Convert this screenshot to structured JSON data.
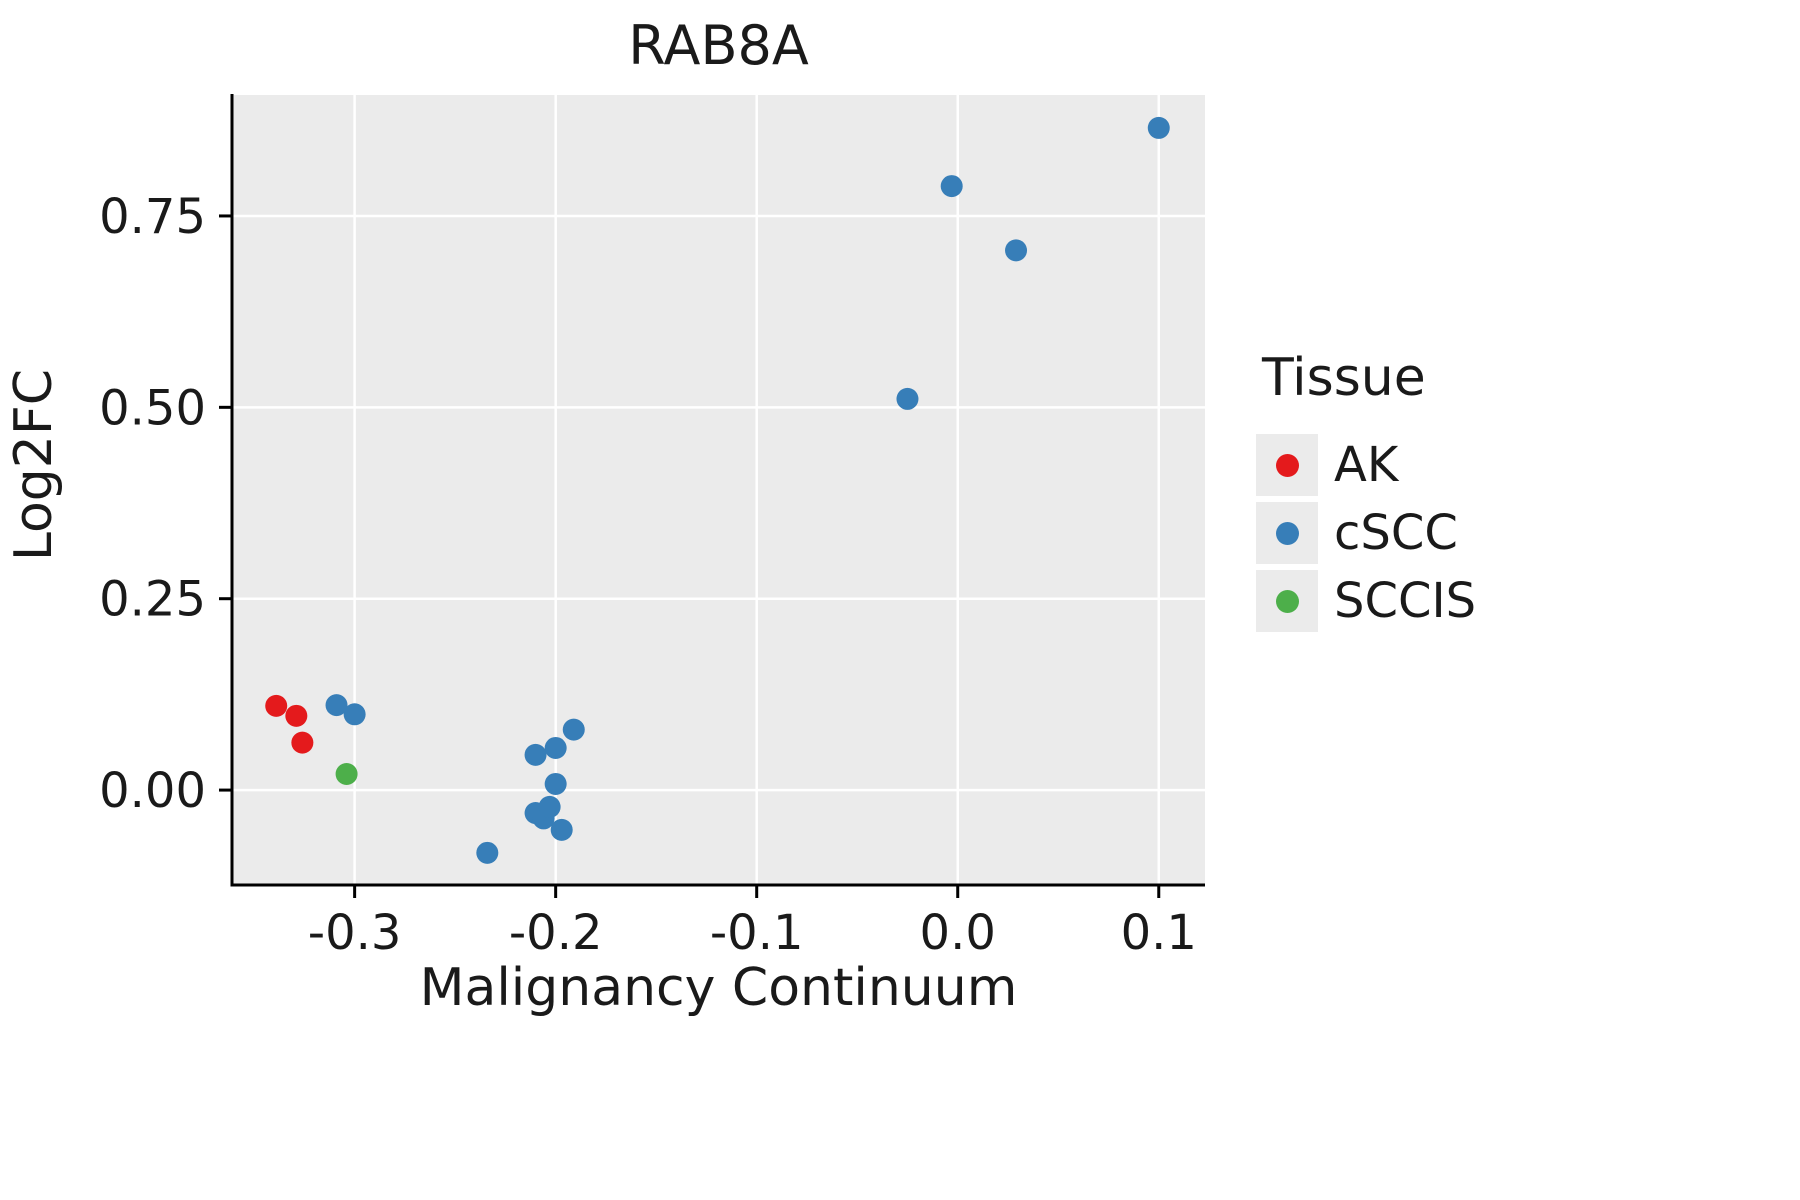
{
  "colors": {
    "panel_bg": "#EBEBEB",
    "grid": "#FFFFFF",
    "axis": "#000000",
    "text": "#1a1a1a",
    "ak": "#E41A1C",
    "cscc": "#377EB8",
    "sccis": "#4DAF4A"
  },
  "legend": {
    "title": "Tissue",
    "entries": [
      {
        "label": "AK",
        "color": "#E41A1C"
      },
      {
        "label": "cSCC",
        "color": "#377EB8"
      },
      {
        "label": "SCCIS",
        "color": "#4DAF4A"
      }
    ]
  },
  "chart_data": {
    "type": "scatter",
    "title": "RAB8A",
    "xlabel": "Malignancy Continuum",
    "ylabel": "Log2FC",
    "legend_title": "Tissue",
    "legend_position": "right",
    "grid": true,
    "xlim": [
      -0.361,
      0.123
    ],
    "ylim": [
      -0.124,
      0.908
    ],
    "x_ticks": [
      -0.3,
      -0.2,
      -0.1,
      0.0,
      0.1
    ],
    "x_tick_labels": [
      "-0.3",
      "-0.2",
      "-0.1",
      "0.0",
      "0.1"
    ],
    "y_ticks": [
      0.0,
      0.25,
      0.5,
      0.75
    ],
    "y_tick_labels": [
      "0.00",
      "0.25",
      "0.50",
      "0.75"
    ],
    "point_radius_px": 11,
    "series": [
      {
        "name": "AK",
        "color": "#E41A1C",
        "points": [
          [
            -0.339,
            0.11
          ],
          [
            -0.329,
            0.097
          ],
          [
            -0.326,
            0.062
          ]
        ]
      },
      {
        "name": "cSCC",
        "color": "#377EB8",
        "points": [
          [
            -0.309,
            0.111
          ],
          [
            -0.3,
            0.099
          ],
          [
            -0.234,
            -0.082
          ],
          [
            -0.21,
            0.046
          ],
          [
            -0.21,
            -0.03
          ],
          [
            -0.206,
            -0.037
          ],
          [
            -0.203,
            -0.022
          ],
          [
            -0.2,
            0.055
          ],
          [
            -0.2,
            0.008
          ],
          [
            -0.197,
            -0.052
          ],
          [
            -0.191,
            0.079
          ],
          [
            -0.025,
            0.511
          ],
          [
            -0.003,
            0.789
          ],
          [
            0.029,
            0.705
          ],
          [
            0.1,
            0.865
          ]
        ]
      },
      {
        "name": "SCCIS",
        "color": "#4DAF4A",
        "points": [
          [
            -0.304,
            0.021
          ]
        ]
      }
    ]
  }
}
